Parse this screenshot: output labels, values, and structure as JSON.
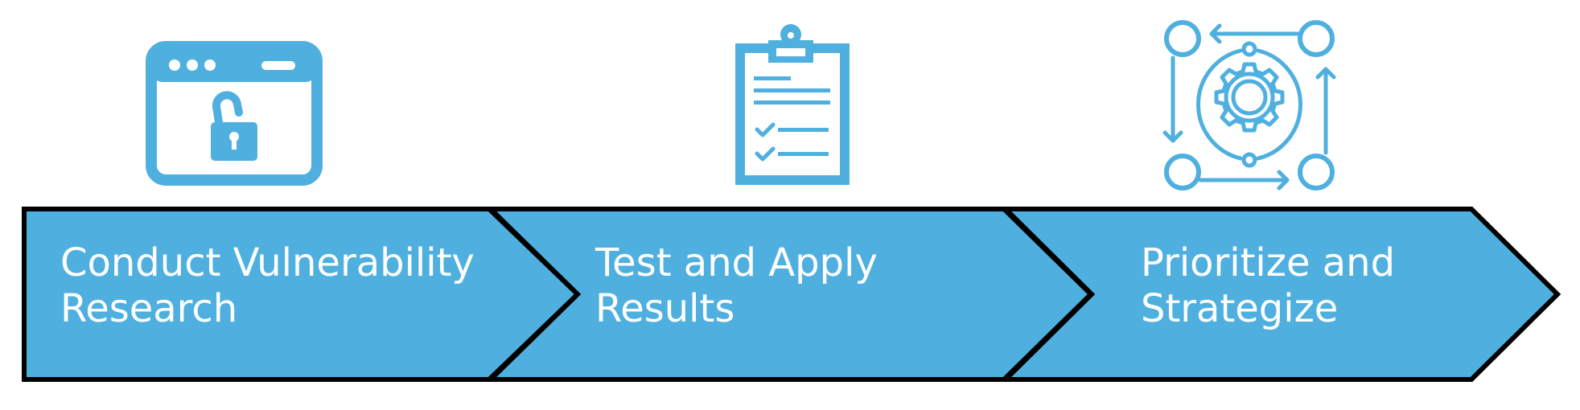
{
  "colors": {
    "accent": "#4FB0E0",
    "outline": "#000000",
    "text": "#ffffff",
    "background": "#ffffff"
  },
  "steps": [
    {
      "icon": "browser-unlock-icon",
      "line1": "Conduct Vulnerability",
      "line2": "Research"
    },
    {
      "icon": "clipboard-checklist-icon",
      "line1": "Test and Apply",
      "line2": "Results"
    },
    {
      "icon": "gear-process-cycle-icon",
      "line1": "Prioritize and",
      "line2": "Strategize"
    }
  ]
}
